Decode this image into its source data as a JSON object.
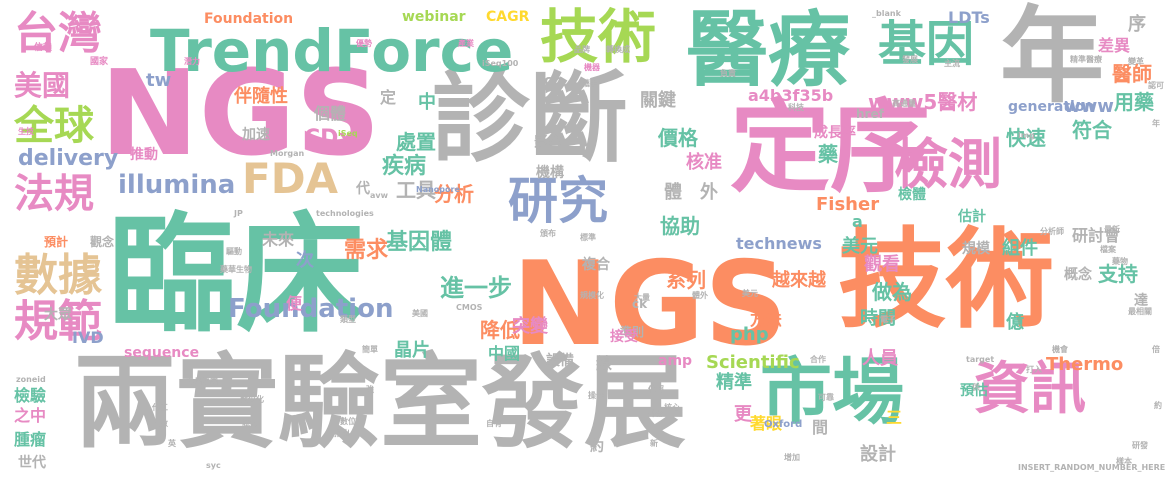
{
  "colors": {
    "green": "#66c2a5",
    "orange": "#fc8d62",
    "blue": "#8da0cb",
    "pink": "#e78ac3",
    "lime": "#a6d854",
    "yellow": "#ffd92f",
    "tan": "#e5c494",
    "gray": "#b3b3b3"
  },
  "words": [
    {
      "text": "臨床",
      "color": "green",
      "vertical": false
    },
    {
      "text": "NGS",
      "color": "pink",
      "vertical": false
    },
    {
      "text": "NGS",
      "color": "orange",
      "vertical": false
    },
    {
      "text": "兩實驗室發展",
      "color": "gray",
      "vertical": false
    },
    {
      "text": "診斷",
      "color": "gray",
      "vertical": false
    },
    {
      "text": "技術",
      "color": "orange",
      "vertical": false
    },
    {
      "text": "醫療",
      "color": "green",
      "vertical": false
    },
    {
      "text": "年",
      "color": "gray",
      "vertical": false
    },
    {
      "text": "定序",
      "color": "pink",
      "vertical": false
    },
    {
      "text": "市場",
      "color": "green",
      "vertical": false
    },
    {
      "text": "TrendForce",
      "color": "green",
      "vertical": false
    },
    {
      "text": "台灣",
      "color": "pink",
      "vertical": false
    },
    {
      "text": "技術",
      "color": "lime",
      "vertical": false
    },
    {
      "text": "基因",
      "color": "green",
      "vertical": false
    },
    {
      "text": "檢測",
      "color": "pink",
      "vertical": false
    },
    {
      "text": "研究",
      "color": "blue",
      "vertical": false
    },
    {
      "text": "資訊",
      "color": "pink",
      "vertical": false
    },
    {
      "text": "數據",
      "color": "tan",
      "vertical": false
    },
    {
      "text": "規範",
      "color": "pink",
      "vertical": false
    },
    {
      "text": "全球",
      "color": "lime",
      "vertical": false
    },
    {
      "text": "法規",
      "color": "pink",
      "vertical": false
    },
    {
      "text": "美國",
      "color": "pink",
      "vertical": false
    },
    {
      "text": "FDA",
      "color": "tan",
      "vertical": false
    },
    {
      "text": "illumina",
      "color": "blue",
      "vertical": false
    },
    {
      "text": "Foundation",
      "color": "orange",
      "vertical": false
    },
    {
      "text": "Foundation",
      "color": "blue",
      "vertical": false
    },
    {
      "text": "基因體",
      "color": "green",
      "vertical": false
    },
    {
      "text": "進一步",
      "color": "green",
      "vertical": false
    },
    {
      "text": "需求",
      "color": "orange",
      "vertical": false
    },
    {
      "text": "www5醫材",
      "color": "pink",
      "vertical": false
    },
    {
      "text": "醫師",
      "color": "orange",
      "vertical": false
    },
    {
      "text": "用藥",
      "color": "green",
      "vertical": false
    },
    {
      "text": "www",
      "color": "blue",
      "vertical": false
    },
    {
      "text": "快速",
      "color": "green",
      "vertical": false
    },
    {
      "text": "符合",
      "color": "green",
      "vertical": false
    },
    {
      "text": "delivery",
      "color": "blue",
      "vertical": false
    },
    {
      "text": "伴隨性",
      "color": "orange",
      "vertical": false
    },
    {
      "text": "CDx",
      "color": "pink",
      "vertical": false
    },
    {
      "text": "疾病",
      "color": "green",
      "vertical": false
    },
    {
      "text": "處置",
      "color": "green",
      "vertical": false
    },
    {
      "text": "工具",
      "color": "gray",
      "vertical": false
    },
    {
      "text": "關鍵",
      "color": "gray",
      "vertical": false
    },
    {
      "text": "價格",
      "color": "green",
      "vertical": false
    },
    {
      "text": "核准",
      "color": "pink",
      "vertical": false
    },
    {
      "text": "a4b3f35b",
      "color": "pink",
      "vertical": false
    },
    {
      "text": "分析",
      "color": "orange",
      "vertical": false
    },
    {
      "text": "協助",
      "color": "green",
      "vertical": false
    },
    {
      "text": "Fisher",
      "color": "orange",
      "vertical": false
    },
    {
      "text": "Thermo",
      "color": "orange",
      "vertical": false
    },
    {
      "text": "Scientific",
      "color": "lime",
      "vertical": false
    },
    {
      "text": "technews",
      "color": "blue",
      "vertical": false
    },
    {
      "text": "美元",
      "color": "green",
      "vertical": false
    },
    {
      "text": "組件",
      "color": "green",
      "vertical": false
    },
    {
      "text": "研討會",
      "color": "gray",
      "vertical": false
    },
    {
      "text": "支持",
      "color": "green",
      "vertical": false
    },
    {
      "text": "系列",
      "color": "orange",
      "vertical": false
    },
    {
      "text": "越來越",
      "color": "orange",
      "vertical": false
    },
    {
      "text": "觀看",
      "color": "pink",
      "vertical": false
    },
    {
      "text": "做為",
      "color": "green",
      "vertical": false
    },
    {
      "text": "時間",
      "color": "green",
      "vertical": false
    },
    {
      "text": "億",
      "color": "green",
      "vertical": false
    },
    {
      "text": "降低",
      "color": "orange",
      "vertical": false
    },
    {
      "text": "突變",
      "color": "pink",
      "vertical": false
    },
    {
      "text": "中國",
      "color": "green",
      "vertical": false
    },
    {
      "text": "晶片",
      "color": "green",
      "vertical": false
    },
    {
      "text": "精準",
      "color": "green",
      "vertical": false
    },
    {
      "text": "人員",
      "color": "pink",
      "vertical": false
    },
    {
      "text": "著眼",
      "color": "yellow",
      "vertical": false
    },
    {
      "text": "設計",
      "color": "gray",
      "vertical": false
    },
    {
      "text": "webinar",
      "color": "lime",
      "vertical": false
    },
    {
      "text": "CAGR",
      "color": "yellow",
      "vertical": false
    },
    {
      "text": "LDTs",
      "color": "blue",
      "vertical": false
    },
    {
      "text": "檢驗",
      "color": "green",
      "vertical": false
    },
    {
      "text": "之中",
      "color": "pink",
      "vertical": false
    },
    {
      "text": "腫瘤",
      "color": "green",
      "vertical": false
    },
    {
      "text": "世代",
      "color": "gray",
      "vertical": false
    },
    {
      "text": "大眾",
      "color": "gray",
      "vertical": false
    },
    {
      "text": "IVD",
      "color": "blue",
      "vertical": false
    },
    {
      "text": "sequence",
      "color": "pink",
      "vertical": false
    },
    {
      "text": "generation",
      "color": "blue",
      "vertical": false
    },
    {
      "text": "tw",
      "color": "blue",
      "vertical": false
    },
    {
      "text": "cb",
      "color": "gray",
      "vertical": false
    },
    {
      "text": "href",
      "color": "gray",
      "vertical": false
    },
    {
      "text": "php",
      "color": "green",
      "vertical": false
    },
    {
      "text": "amp",
      "color": "pink",
      "vertical": false
    },
    {
      "text": "ck",
      "color": "gray",
      "vertical": false
    },
    {
      "text": "a",
      "color": "green",
      "vertical": false
    },
    {
      "text": "外",
      "color": "gray",
      "vertical": false
    },
    {
      "text": "體",
      "color": "gray",
      "vertical": false
    },
    {
      "text": "次",
      "color": "blue",
      "vertical": false
    },
    {
      "text": "便",
      "color": "pink",
      "vertical": false
    },
    {
      "text": "代",
      "color": "gray",
      "vertical": false
    },
    {
      "text": "更",
      "color": "pink",
      "vertical": false
    },
    {
      "text": "間",
      "color": "gray",
      "vertical": false
    },
    {
      "text": "三",
      "color": "yellow",
      "vertical": false
    },
    {
      "text": "中",
      "color": "green",
      "vertical": false
    },
    {
      "text": "定",
      "color": "gray",
      "vertical": false
    },
    {
      "text": "序",
      "color": "gray",
      "vertical": false
    },
    {
      "text": "藥",
      "color": "green",
      "vertical": false
    },
    {
      "text": "達",
      "color": "gray",
      "vertical": false
    },
    {
      "text": "個體",
      "color": "gray",
      "vertical": false
    },
    {
      "text": "加速",
      "color": "gray",
      "vertical": false
    },
    {
      "text": "推動",
      "color": "pink",
      "vertical": false
    },
    {
      "text": "影響",
      "color": "gray",
      "vertical": false
    },
    {
      "text": "機構",
      "color": "gray",
      "vertical": false
    },
    {
      "text": "成長率",
      "color": "pink",
      "vertical": false
    },
    {
      "text": "檢體",
      "color": "green",
      "vertical": false
    },
    {
      "text": "估計",
      "color": "green",
      "vertical": false
    },
    {
      "text": "預計",
      "color": "orange",
      "vertical": false
    },
    {
      "text": "觀念",
      "color": "gray",
      "vertical": false
    },
    {
      "text": "未來",
      "color": "gray",
      "vertical": false
    },
    {
      "text": "複合",
      "color": "gray",
      "vertical": false
    },
    {
      "text": "準則",
      "color": "gray",
      "vertical": false
    },
    {
      "text": "規模",
      "color": "gray",
      "vertical": false
    },
    {
      "text": "概念",
      "color": "gray",
      "vertical": false
    },
    {
      "text": "接受",
      "color": "pink",
      "vertical": false
    },
    {
      "text": "方法",
      "color": "orange",
      "vertical": false
    },
    {
      "text": "設備",
      "color": "gray",
      "vertical": false
    },
    {
      "text": "線",
      "color": "gray",
      "vertical": false
    },
    {
      "text": "約",
      "color": "gray",
      "vertical": false
    },
    {
      "text": "預估",
      "color": "green",
      "vertical": false
    },
    {
      "text": "差異",
      "color": "pink",
      "vertical": false
    },
    {
      "text": "iSeq",
      "color": "lime",
      "vertical": false
    },
    {
      "text": "Nanopore",
      "color": "blue",
      "vertical": false
    },
    {
      "text": "Morgan",
      "color": "gray",
      "vertical": false
    },
    {
      "text": "CMOS",
      "color": "gray",
      "vertical": false
    },
    {
      "text": "Oxford",
      "color": "blue",
      "vertical": false
    },
    {
      "text": "technologies",
      "color": "gray",
      "vertical": false
    },
    {
      "text": "_blank",
      "color": "gray",
      "vertical": false
    },
    {
      "text": "target",
      "color": "gray",
      "vertical": false
    },
    {
      "text": "zoneid",
      "color": "gray",
      "vertical": false
    },
    {
      "text": "img",
      "color": "gray",
      "vertical": false
    },
    {
      "text": "INSERT_RANDOM_NUMBER_HERE",
      "color": "gray",
      "vertical": false
    },
    {
      "text": "iSeq100",
      "color": "gray",
      "vertical": false
    },
    {
      "text": "JP",
      "color": "gray",
      "vertical": false
    },
    {
      "text": "syc",
      "color": "gray",
      "vertical": false
    },
    {
      "text": "avw",
      "color": "gray",
      "vertical": false
    },
    {
      "text": "信賴",
      "color": "pink",
      "vertical": false
    },
    {
      "text": "國家",
      "color": "pink",
      "vertical": false
    },
    {
      "text": "生技",
      "color": "pink",
      "vertical": false
    },
    {
      "text": "潛力",
      "color": "pink",
      "vertical": false
    },
    {
      "text": "優勢",
      "color": "pink",
      "vertical": false
    },
    {
      "text": "產業",
      "color": "pink",
      "vertical": false
    },
    {
      "text": "品牌",
      "color": "gray",
      "vertical": false
    },
    {
      "text": "轉換成",
      "color": "gray",
      "vertical": false
    },
    {
      "text": "機器",
      "color": "pink",
      "vertical": false
    },
    {
      "text": "攜手",
      "color": "gray",
      "vertical": false
    },
    {
      "text": "負責",
      "color": "gray",
      "vertical": false
    },
    {
      "text": "科技",
      "color": "gray",
      "vertical": false
    },
    {
      "text": "高通量",
      "color": "gray",
      "vertical": false
    },
    {
      "text": "分析師",
      "color": "gray",
      "vertical": false
    },
    {
      "text": "最新",
      "color": "gray",
      "vertical": false
    },
    {
      "text": "藥華生物",
      "color": "gray",
      "vertical": false
    },
    {
      "text": "力晶集團",
      "color": "gray",
      "vertical": false
    },
    {
      "text": "數位化",
      "color": "gray",
      "vertical": false
    },
    {
      "text": "指出",
      "color": "gray",
      "vertical": false
    },
    {
      "text": "核心",
      "color": "gray",
      "vertical": false
    },
    {
      "text": "可靠",
      "color": "gray",
      "vertical": false
    },
    {
      "text": "藥物",
      "color": "gray",
      "vertical": false
    },
    {
      "text": "合作",
      "color": "gray",
      "vertical": false
    },
    {
      "text": "打入",
      "color": "gray",
      "vertical": false
    },
    {
      "text": "最相關",
      "color": "gray",
      "vertical": false
    },
    {
      "text": "研發",
      "color": "gray",
      "vertical": false
    },
    {
      "text": "依照",
      "color": "gray",
      "vertical": false
    },
    {
      "text": "操作",
      "color": "gray",
      "vertical": false
    },
    {
      "text": "自有",
      "color": "gray",
      "vertical": false
    },
    {
      "text": "樣本",
      "color": "gray",
      "vertical": false
    },
    {
      "text": "檔案",
      "color": "gray",
      "vertical": false
    },
    {
      "text": "電子",
      "color": "gray",
      "vertical": false
    },
    {
      "text": "代工",
      "color": "gray",
      "vertical": false
    },
    {
      "text": "人數",
      "color": "gray",
      "vertical": false
    },
    {
      "text": "試劑",
      "color": "gray",
      "vertical": false
    },
    {
      "text": "數位",
      "color": "gray",
      "vertical": false
    },
    {
      "text": "外部",
      "color": "gray",
      "vertical": false
    },
    {
      "text": "新",
      "color": "gray",
      "vertical": false
    },
    {
      "text": "強",
      "color": "gray",
      "vertical": false
    },
    {
      "text": "供",
      "color": "gray",
      "vertical": false
    },
    {
      "text": "規模化",
      "color": "gray",
      "vertical": false
    },
    {
      "text": "大量",
      "color": "gray",
      "vertical": false
    },
    {
      "text": "英",
      "color": "gray",
      "vertical": false
    },
    {
      "text": "精準醫療",
      "color": "gray",
      "vertical": false
    },
    {
      "text": "驅動",
      "color": "gray",
      "vertical": false
    },
    {
      "text": "變革",
      "color": "gray",
      "vertical": false
    },
    {
      "text": "發展",
      "color": "gray",
      "vertical": false
    },
    {
      "text": "主流",
      "color": "gray",
      "vertical": false
    },
    {
      "text": "類型",
      "color": "gray",
      "vertical": false
    },
    {
      "text": "簡單",
      "color": "gray",
      "vertical": false
    },
    {
      "text": "美國",
      "color": "gray",
      "vertical": false
    },
    {
      "text": "機會",
      "color": "gray",
      "vertical": false
    },
    {
      "text": "體外",
      "color": "gray",
      "vertical": false
    },
    {
      "text": "美元",
      "color": "gray",
      "vertical": false
    },
    {
      "text": "頒布",
      "color": "gray",
      "vertical": false
    },
    {
      "text": "標準",
      "color": "gray",
      "vertical": false
    },
    {
      "text": "增加",
      "color": "gray",
      "vertical": false
    },
    {
      "text": "認可",
      "color": "gray",
      "vertical": false
    },
    {
      "text": "年",
      "color": "gray",
      "vertical": false
    },
    {
      "text": "倍",
      "color": "gray",
      "vertical": false
    },
    {
      "text": "約",
      "color": "gray",
      "vertical": false
    }
  ]
}
